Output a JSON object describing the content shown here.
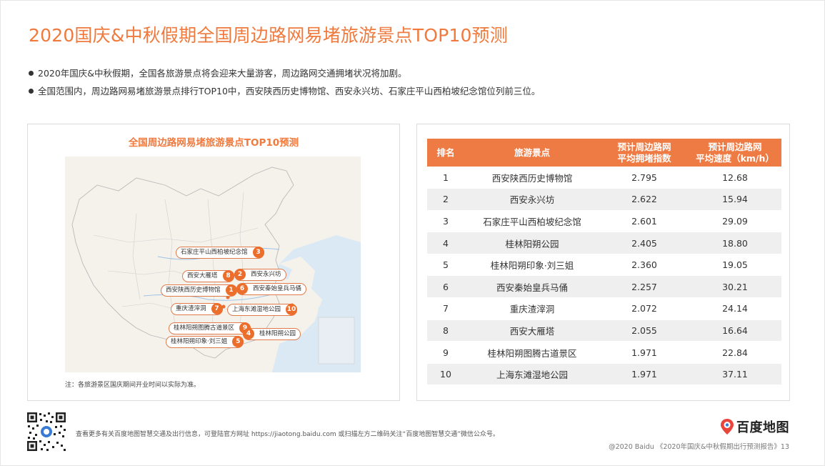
{
  "page": {
    "title": "2020国庆&中秋假期全国周边路网易堵旅游景点TOP10预测",
    "bullets": [
      "2020年国庆&中秋假期，全国各旅游景点将会迎来大量游客，周边路网交通拥堵状况将加剧。",
      "全国范围内，周边路网易堵旅游景点排行TOP10中，西安陕西历史博物馆、西安永兴坊、石家庄平山西柏坡纪念馆位列前三位。"
    ]
  },
  "map_panel": {
    "title": "全国周边路网易堵旅游景点TOP10预测",
    "note": "注：各旅游景区国庆期间开业时间以实际为准。",
    "callouts": [
      {
        "rank": "3",
        "label": "石家庄平山西柏坡纪念馆"
      },
      {
        "rank": "8",
        "label": "西安大雁塔"
      },
      {
        "rank": "2",
        "label": "西安永兴坊"
      },
      {
        "rank": "1",
        "label": "西安陕西历史博物馆"
      },
      {
        "rank": "6",
        "label": "西安秦始皇兵马俑"
      },
      {
        "rank": "7",
        "label": "重庆渣滓洞"
      },
      {
        "rank": "10",
        "label": "上海东滩湿地公园"
      },
      {
        "rank": "9",
        "label": "桂林阳朔图腾古道景区"
      },
      {
        "rank": "4",
        "label": "桂林阳朔公园"
      },
      {
        "rank": "5",
        "label": "桂林阳朔印象·刘三姐"
      }
    ]
  },
  "table": {
    "headers": {
      "rank": "排名",
      "spot": "旅游景点",
      "index_line1": "预计周边路网",
      "index_line2": "平均拥堵指数",
      "speed_line1": "预计周边路网",
      "speed_line2": "平均速度（km/h）"
    },
    "rows": [
      {
        "rank": "1",
        "spot": "西安陕西历史博物馆",
        "index": "2.795",
        "speed": "12.68"
      },
      {
        "rank": "2",
        "spot": "西安永兴坊",
        "index": "2.622",
        "speed": "15.94"
      },
      {
        "rank": "3",
        "spot": "石家庄平山西柏坡纪念馆",
        "index": "2.601",
        "speed": "29.09"
      },
      {
        "rank": "4",
        "spot": "桂林阳朔公园",
        "index": "2.405",
        "speed": "18.80"
      },
      {
        "rank": "5",
        "spot": "桂林阳朔印象·刘三姐",
        "index": "2.360",
        "speed": "19.05"
      },
      {
        "rank": "6",
        "spot": "西安秦始皇兵马俑",
        "index": "2.257",
        "speed": "30.21"
      },
      {
        "rank": "7",
        "spot": "重庆渣滓洞",
        "index": "2.072",
        "speed": "24.14"
      },
      {
        "rank": "8",
        "spot": "西安大雁塔",
        "index": "2.055",
        "speed": "16.64"
      },
      {
        "rank": "9",
        "spot": "桂林阳朔图腾古道景区",
        "index": "1.971",
        "speed": "22.84"
      },
      {
        "rank": "10",
        "spot": "上海东滩湿地公园",
        "index": "1.971",
        "speed": "37.11"
      }
    ]
  },
  "footer": {
    "text": "查看更多有关百度地图智慧交通及出行信息，可登陆官方网址 https://jiaotong.baidu.com 或扫描左方二维码关注“百度地图智慧交通”微信公众号。",
    "logo_text": "百度地图",
    "copyright": "@2020 Baidu 《2020年国庆&中秋假期出行预测报告》13"
  },
  "colors": {
    "accent": "#f07a3d",
    "header_bg": "#ef7b44",
    "rank_circle": "#ec6e2c",
    "sea": "#dbe9f5",
    "land": "#f5f2ec"
  },
  "icons": [
    "qr-code-icon",
    "baidu-map-pin-icon"
  ]
}
